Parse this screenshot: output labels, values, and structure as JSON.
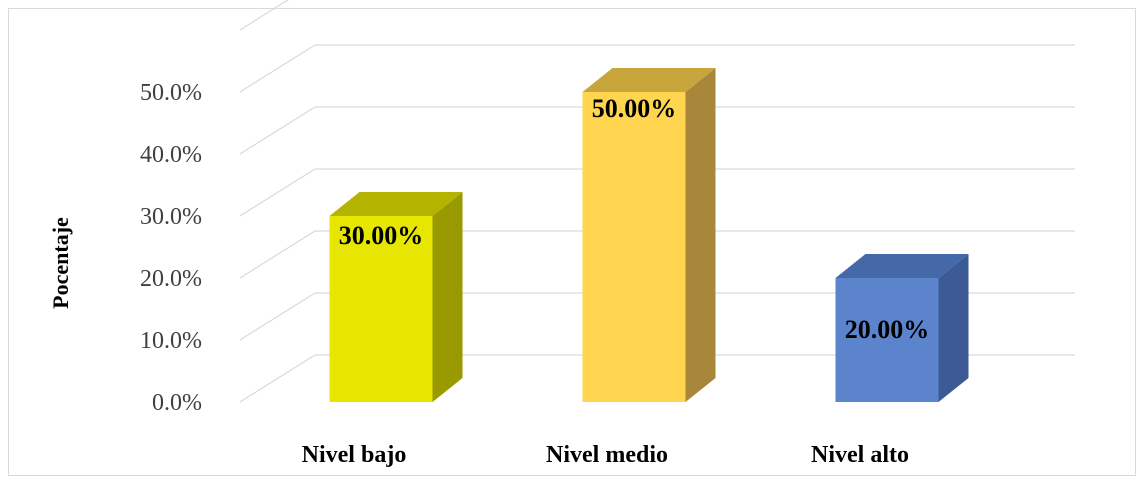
{
  "chart_data": {
    "type": "bar",
    "title": "",
    "xlabel": "",
    "ylabel": "Pocentaje",
    "categories": [
      "Nivel bajo",
      "Nivel medio",
      "Nivel alto"
    ],
    "values": [
      30.0,
      50.0,
      20.0
    ],
    "data_labels": [
      "30.00%",
      "50.00%",
      "20.00%"
    ],
    "y_ticks": [
      "0.0%",
      "10.0%",
      "20.0%",
      "30.0%",
      "40.0%",
      "50.0%"
    ],
    "ylim": [
      0,
      50
    ],
    "grid": true,
    "legend": "none",
    "style": "3d-column",
    "colors": {
      "bars": [
        "#e6e600",
        "#ffd54f",
        "#5b84cc"
      ],
      "bar_sides": [
        "#999900",
        "#a8873a",
        "#3c5a96"
      ],
      "bar_tops": [
        "#b3b300",
        "#c9a63c",
        "#4468a8"
      ],
      "grid": "#d9d9d9"
    }
  }
}
